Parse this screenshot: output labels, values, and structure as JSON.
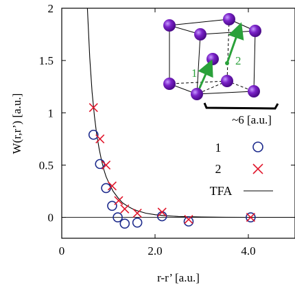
{
  "chart_data": {
    "type": "scatter",
    "xlabel": "r-r’ [a.u.]",
    "ylabel": "W(r,r’) [a.u.]",
    "xlim": [
      0,
      5
    ],
    "ylim": [
      -0.2,
      2
    ],
    "xticks": [
      {
        "value": 0,
        "label": "0"
      },
      {
        "value": 2,
        "label": "2.0"
      },
      {
        "value": 4,
        "label": "4.0"
      }
    ],
    "yticks": [
      {
        "value": 0,
        "label": "0"
      },
      {
        "value": 0.5,
        "label": "0.5"
      },
      {
        "value": 1,
        "label": "1"
      },
      {
        "value": 1.5,
        "label": "1.5"
      },
      {
        "value": 2,
        "label": "2"
      }
    ],
    "legend_position": "right",
    "series": [
      {
        "name": "1",
        "marker": "open-circle",
        "color": "#1c2a8c",
        "points": [
          [
            0.68,
            0.79
          ],
          [
            0.82,
            0.51
          ],
          [
            0.95,
            0.28
          ],
          [
            1.08,
            0.11
          ],
          [
            1.2,
            0.0
          ],
          [
            1.35,
            -0.06
          ],
          [
            1.62,
            -0.05
          ],
          [
            2.15,
            0.01
          ],
          [
            2.72,
            -0.04
          ],
          [
            4.05,
            0.0
          ]
        ]
      },
      {
        "name": "2",
        "marker": "x",
        "color": "#e0162b",
        "points": [
          [
            0.68,
            1.05
          ],
          [
            0.82,
            0.75
          ],
          [
            0.95,
            0.5
          ],
          [
            1.08,
            0.3
          ],
          [
            1.22,
            0.16
          ],
          [
            1.35,
            0.08
          ],
          [
            1.62,
            0.04
          ],
          [
            2.15,
            0.05
          ],
          [
            2.72,
            -0.02
          ],
          [
            4.05,
            0.0
          ]
        ]
      },
      {
        "name": "TFA",
        "style": "line",
        "color": "#000000",
        "x": [
          0.55,
          0.6,
          0.65,
          0.7,
          0.75,
          0.8,
          0.85,
          0.9,
          0.95,
          1.0,
          1.1,
          1.2,
          1.3,
          1.4,
          1.5,
          1.6,
          1.8,
          2.0,
          2.2,
          2.5,
          3.0,
          3.5,
          4.0,
          4.5,
          5.0
        ],
        "y": [
          2.0,
          1.53,
          1.2,
          0.97,
          0.79,
          0.66,
          0.55,
          0.46,
          0.39,
          0.34,
          0.25,
          0.19,
          0.14,
          0.11,
          0.085,
          0.066,
          0.04,
          0.025,
          0.016,
          0.008,
          0.003,
          0.001,
          0.0004,
          0.0001,
          0.0
        ]
      }
    ],
    "inset": {
      "atom_color": "#7a22c8",
      "arrow_color": "#2aa13a",
      "arrow1_label": "1",
      "arrow2_label": "2",
      "scale_label": "~6 [a.u.]"
    }
  }
}
